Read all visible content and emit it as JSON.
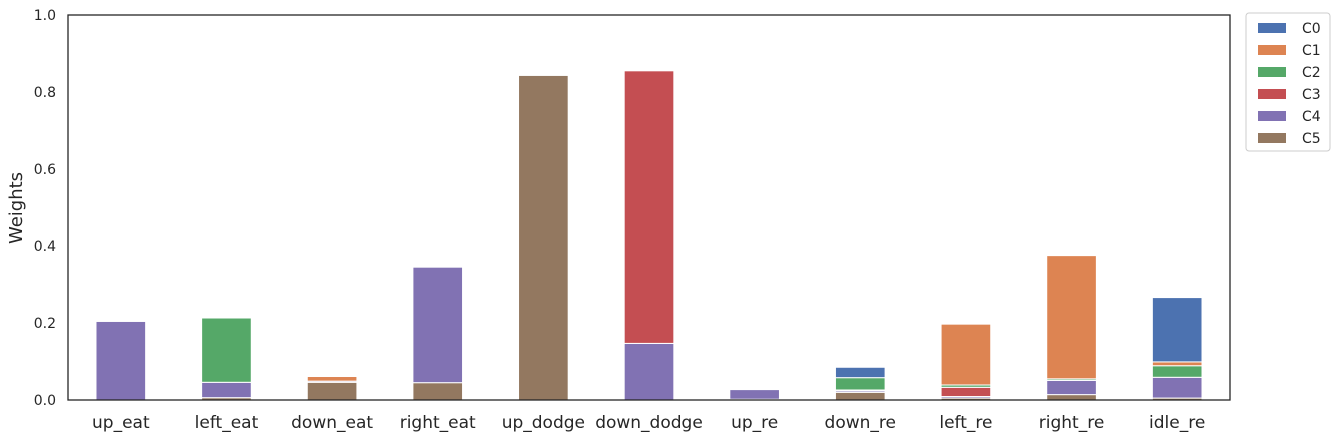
{
  "chart_data": {
    "type": "bar",
    "stacked": true,
    "title": "",
    "xlabel": "",
    "ylabel": "Weights",
    "ylim": [
      0,
      1.0
    ],
    "yticks": [
      "0.0",
      "0.2",
      "0.4",
      "0.6",
      "0.8",
      "1.0"
    ],
    "grid": false,
    "legend_position": "outside-top-right",
    "categories": [
      "up_eat",
      "left_eat",
      "down_eat",
      "right_eat",
      "up_dodge",
      "down_dodge",
      "up_re",
      "down_re",
      "left_re",
      "right_re",
      "idle_re"
    ],
    "series": [
      {
        "name": "C0",
        "color": "#4c72b0",
        "values": [
          0.0,
          0.0,
          0.0,
          0.0,
          0.0,
          0.0,
          0.0,
          0.027,
          0.0,
          0.0,
          0.167
        ]
      },
      {
        "name": "C1",
        "color": "#dd8452",
        "values": [
          0.0,
          0.0,
          0.012,
          0.0,
          0.0,
          0.0,
          0.0,
          0.0,
          0.158,
          0.32,
          0.01
        ]
      },
      {
        "name": "C2",
        "color": "#55a868",
        "values": [
          0.0,
          0.167,
          0.0,
          0.0,
          0.0,
          0.0,
          0.0,
          0.032,
          0.006,
          0.004,
          0.03
        ]
      },
      {
        "name": "C3",
        "color": "#c44e52",
        "values": [
          0.0,
          0.0,
          0.0,
          0.0,
          0.0,
          0.708,
          0.0,
          0.002,
          0.024,
          0.0,
          0.0
        ]
      },
      {
        "name": "C4",
        "color": "#8172b3",
        "values": [
          0.204,
          0.04,
          0.003,
          0.3,
          0.0,
          0.147,
          0.025,
          0.004,
          0.004,
          0.037,
          0.054
        ]
      },
      {
        "name": "C5",
        "color": "#937860",
        "values": [
          0.0,
          0.006,
          0.046,
          0.045,
          0.843,
          0.0,
          0.002,
          0.02,
          0.005,
          0.014,
          0.005
        ]
      }
    ]
  }
}
